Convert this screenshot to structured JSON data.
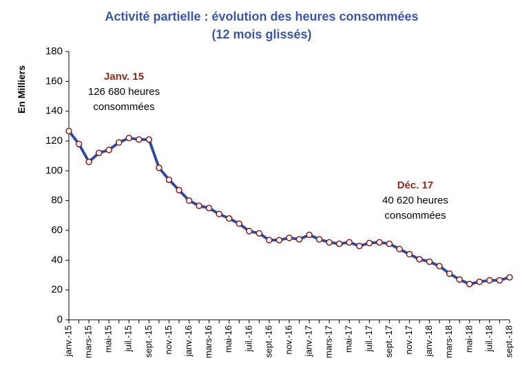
{
  "chart_data": {
    "type": "line",
    "title": [
      "Activité partielle : évolution des heures consommées",
      "(12 mois glissés)"
    ],
    "y_label": "En Milliers",
    "categories": [
      "janv.-15",
      null,
      "mars-15",
      null,
      "mai-15",
      null,
      "juil.-15",
      null,
      "sept.-15",
      null,
      "nov.-15",
      null,
      "janv.-16",
      null,
      "mars-16",
      null,
      "mai-16",
      null,
      "juil.-16",
      null,
      "sept.-16",
      null,
      "nov.-16",
      null,
      "janv.-17",
      null,
      "mars-17",
      null,
      "mai-17",
      null,
      "juil.-17",
      null,
      "sept.-17",
      null,
      "nov.-17",
      null,
      "janv.-18",
      null,
      "mars-18",
      null,
      "mai-18",
      null,
      "juil.-18",
      null,
      "sept.-18"
    ],
    "series": [
      {
        "name": "Heures consommées",
        "color": "#2e4a9e",
        "marker_color": "#8b1a1a",
        "values": [
          126.68,
          118,
          106,
          112,
          114,
          119,
          122,
          121,
          121,
          102,
          94,
          87,
          80,
          76.5,
          75,
          71,
          68,
          64.5,
          59.5,
          58,
          53.5,
          53.5,
          55,
          54,
          57,
          54,
          52,
          51,
          52,
          49.5,
          51.5,
          52,
          51,
          47.5,
          44,
          40.62,
          39,
          36,
          31,
          27,
          24,
          25.5,
          26.5,
          26.5,
          28.5
        ]
      }
    ],
    "ylim": [
      0,
      180
    ],
    "yticks": [
      0,
      20,
      40,
      60,
      80,
      100,
      120,
      140,
      160,
      180
    ],
    "annotations": [
      {
        "title": "Janv. 15",
        "lines": [
          "126 680 heures",
          "consommées"
        ]
      },
      {
        "title": "Déc. 17",
        "lines": [
          "40 620 heures",
          "consommées"
        ]
      }
    ]
  }
}
